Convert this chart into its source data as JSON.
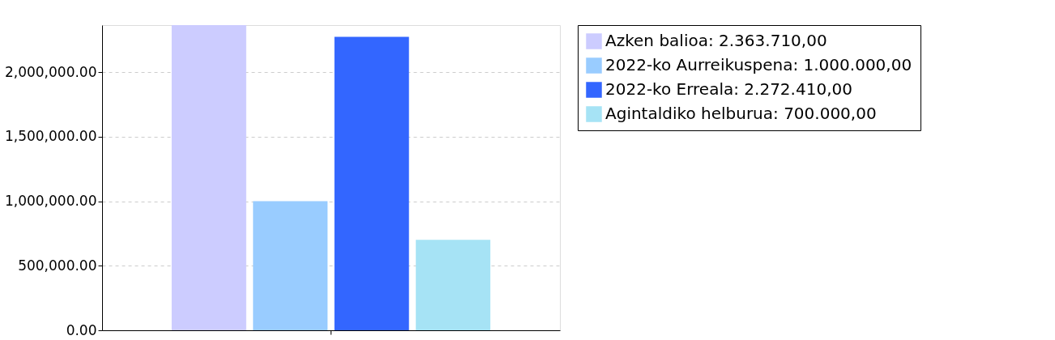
{
  "chart_data": {
    "type": "bar",
    "categories": [
      null
    ],
    "series": [
      {
        "name": "Azken balioa: 2.363.710,00",
        "color": "#ccccff",
        "values": [
          2363710
        ]
      },
      {
        "name": "2022-ko Aurreikuspena: 1.000.000,00",
        "color": "#99ccff",
        "values": [
          1000000
        ]
      },
      {
        "name": "2022-ko Erreala: 2.272.410,00",
        "color": "#3366ff",
        "values": [
          2272410
        ]
      },
      {
        "name": "Agintaldiko helburua: 700.000,00",
        "color": "#a6e3f5",
        "values": [
          700000
        ]
      }
    ],
    "ylim": [
      0,
      2363710
    ],
    "yticks": [
      {
        "value": 0,
        "label": "0.00"
      },
      {
        "value": 500000,
        "label": "500,000.00"
      },
      {
        "value": 1000000,
        "label": "1,000,000.00"
      },
      {
        "value": 1500000,
        "label": "1,500,000.00"
      },
      {
        "value": 2000000,
        "label": "2,000,000.00"
      }
    ],
    "grid": "y",
    "legend": "right",
    "tick_labels": "y"
  }
}
